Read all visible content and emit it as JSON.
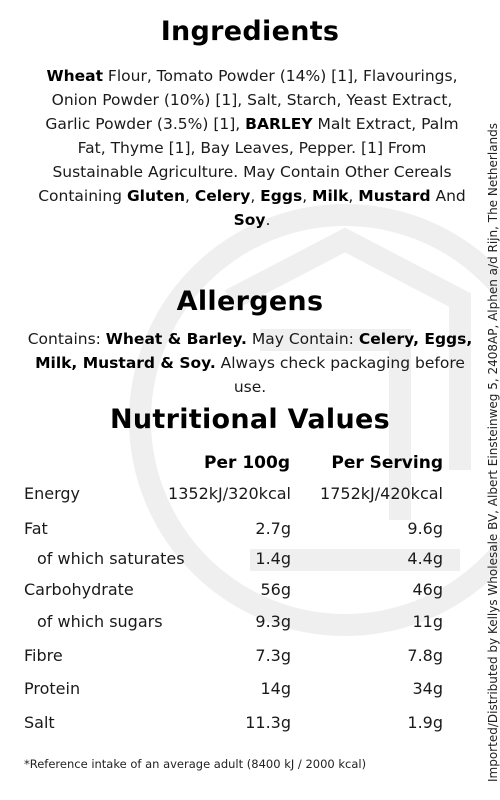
{
  "ingredients": {
    "title": "Ingredients",
    "segments": [
      {
        "t": "Wheat",
        "b": true
      },
      {
        "t": " Flour, Tomato Powder (14%) [1], Flavourings, Onion Powder (10%) [1], Salt, Starch, Yeast Extract, Garlic Powder (3.5%) [1], ",
        "b": false
      },
      {
        "t": "BARLEY",
        "b": true
      },
      {
        "t": " Malt Extract, Palm Fat, Thyme [1], Bay Leaves, Pepper. [1] From Sustainable Agriculture. May Contain Other Cereals Containing ",
        "b": false
      },
      {
        "t": "Gluten",
        "b": true
      },
      {
        "t": ", ",
        "b": false
      },
      {
        "t": "Celery",
        "b": true
      },
      {
        "t": ", ",
        "b": false
      },
      {
        "t": "Eggs",
        "b": true
      },
      {
        "t": ", ",
        "b": false
      },
      {
        "t": "Milk",
        "b": true
      },
      {
        "t": ", ",
        "b": false
      },
      {
        "t": "Mustard",
        "b": true
      },
      {
        "t": " And ",
        "b": false
      },
      {
        "t": "Soy",
        "b": true
      },
      {
        "t": ".",
        "b": false
      }
    ]
  },
  "allergens": {
    "title": "Allergens",
    "segments": [
      {
        "t": "Contains: ",
        "b": false
      },
      {
        "t": "Wheat & Barley.",
        "b": true
      },
      {
        "t": " May Contain: ",
        "b": false
      },
      {
        "t": "Celery, Eggs, Milk, Mustard & Soy.",
        "b": true
      },
      {
        "t": " Always check packaging before use.",
        "b": false
      }
    ]
  },
  "nutrition": {
    "title": "Nutritional Values",
    "col1": "Per 100g",
    "col2": "Per Serving",
    "rows": [
      {
        "label": "Energy",
        "v1": "1352kJ/320kcal",
        "v2": "1752kJ/420kcal"
      },
      {
        "label": "Fat",
        "v1": "2.7g",
        "v2": "9.6g"
      },
      {
        "label": "of which saturates",
        "v1": "1.4g",
        "v2": "4.4g"
      },
      {
        "label": "Carbohydrate",
        "v1": "56g",
        "v2": "46g"
      },
      {
        "label": "of which sugars",
        "v1": "9.3g",
        "v2": "11g"
      },
      {
        "label": "Fibre",
        "v1": "7.3g",
        "v2": "7.8g"
      },
      {
        "label": "Protein",
        "v1": "14g",
        "v2": "34g"
      },
      {
        "label": "Salt",
        "v1": "11.3g",
        "v2": "1.9g"
      }
    ],
    "footnote": "*Reference intake of an average adult (8400 kJ / 2000 kcal)"
  },
  "side_text": "Imported/Distributed by Kellys Wholesale BV, Albert Einsteinweg 5, 2408AP, Alphen a/d Rijn, The Netherlands",
  "colors": {
    "watermark": "#f0f0f0",
    "text": "#1a1a1a"
  }
}
